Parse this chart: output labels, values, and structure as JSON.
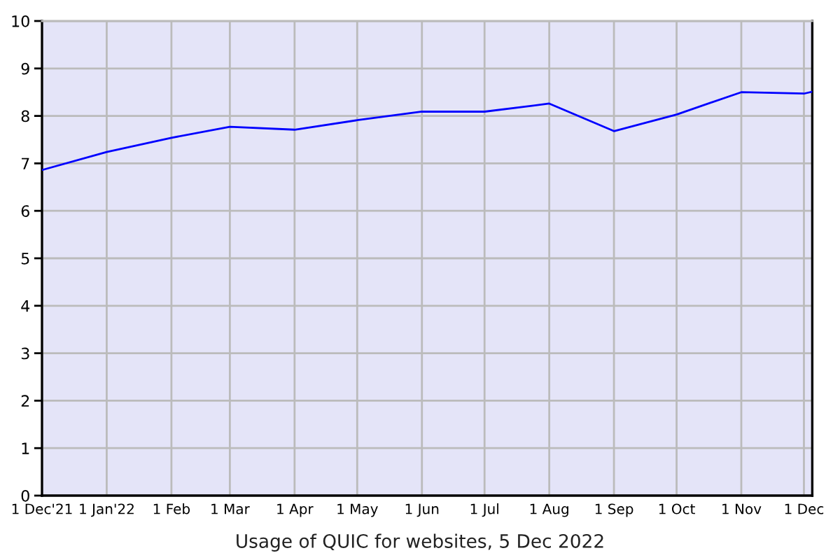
{
  "chart_data": {
    "type": "line",
    "title": "Usage of QUIC for websites, 5 Dec 2022",
    "x": [
      "2021-12-01",
      "2022-01-01",
      "2022-02-01",
      "2022-03-01",
      "2022-04-01",
      "2022-05-01",
      "2022-06-01",
      "2022-07-01",
      "2022-08-01",
      "2022-09-01",
      "2022-10-01",
      "2022-11-01",
      "2022-12-01",
      "2022-12-05"
    ],
    "series": [
      {
        "color": "#0000ff",
        "values": [
          6.86,
          7.24,
          7.54,
          7.77,
          7.71,
          7.91,
          8.09,
          8.09,
          8.26,
          7.68,
          8.03,
          8.5,
          8.47,
          8.51
        ]
      }
    ],
    "xlim": [
      "2021-12-01",
      "2022-12-05"
    ],
    "xticks": [
      {
        "value": "2021-12-01",
        "label": "1 Dec'21"
      },
      {
        "value": "2022-01-01",
        "label": "1 Jan'22"
      },
      {
        "value": "2022-02-01",
        "label": "1 Feb"
      },
      {
        "value": "2022-03-01",
        "label": "1 Mar"
      },
      {
        "value": "2022-04-01",
        "label": "1 Apr"
      },
      {
        "value": "2022-05-01",
        "label": "1 May"
      },
      {
        "value": "2022-06-01",
        "label": "1 Jun"
      },
      {
        "value": "2022-07-01",
        "label": "1 Jul"
      },
      {
        "value": "2022-08-01",
        "label": "1 Aug"
      },
      {
        "value": "2022-09-01",
        "label": "1 Sep"
      },
      {
        "value": "2022-10-01",
        "label": "1 Oct"
      },
      {
        "value": "2022-11-01",
        "label": "1 Nov"
      },
      {
        "value": "2022-12-01",
        "label": "1 Dec"
      }
    ],
    "ylim": [
      0,
      10
    ],
    "yticks": [
      0,
      1,
      2,
      3,
      4,
      5,
      6,
      7,
      8,
      9,
      10
    ],
    "grid": true,
    "marker": "none",
    "line_style": "solid"
  }
}
